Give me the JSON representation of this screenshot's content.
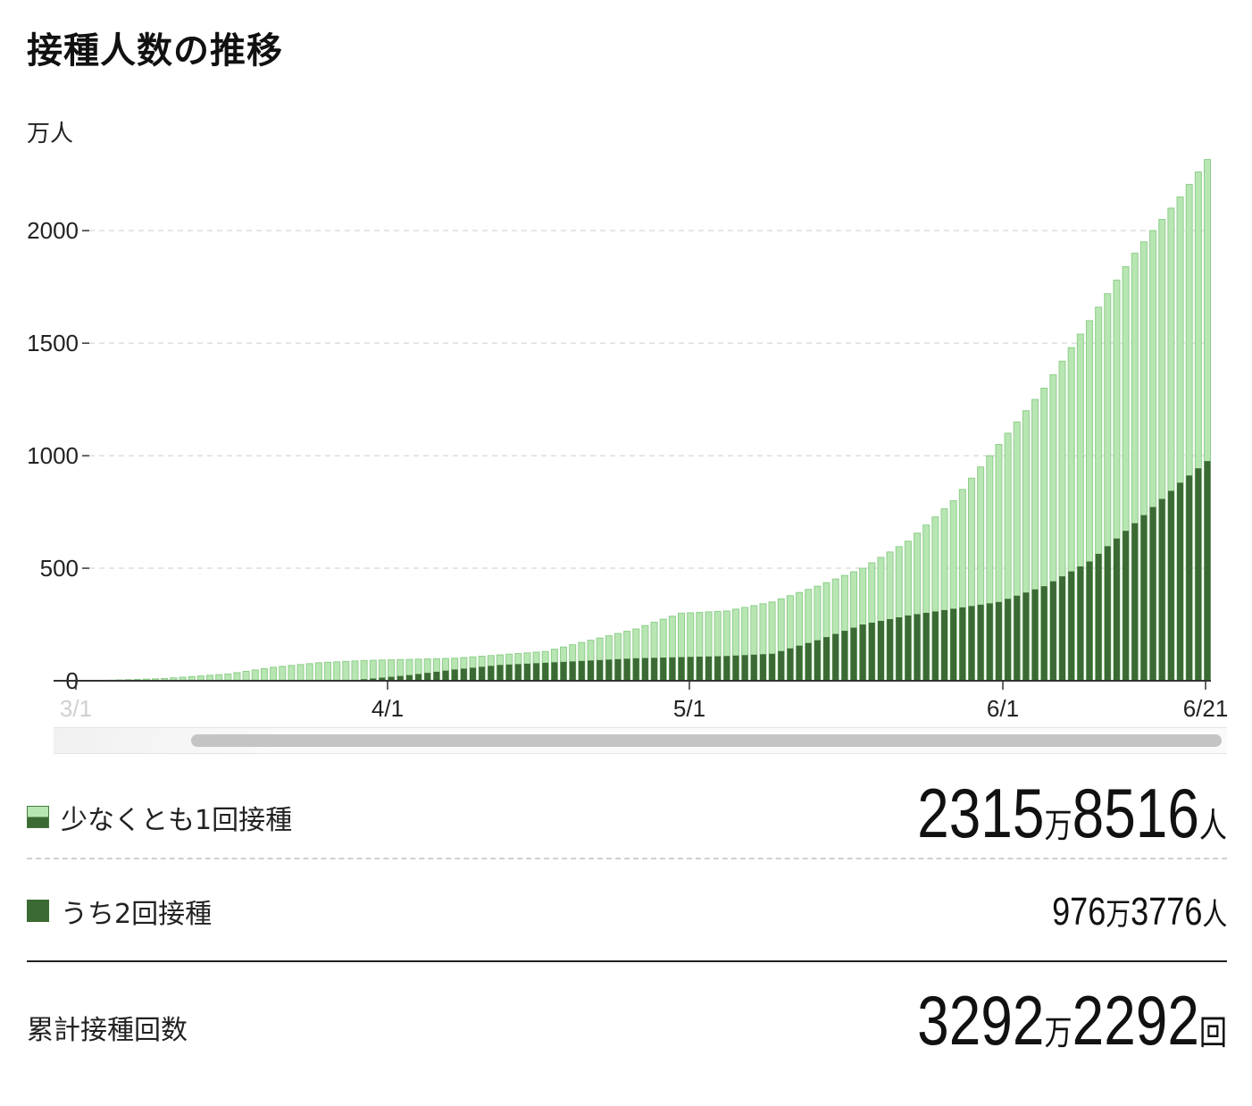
{
  "title": "接種人数の推移",
  "chart_data": {
    "type": "bar",
    "stacked": true,
    "ylabel": "万人",
    "ylim": [
      0,
      2350
    ],
    "yticks": [
      0,
      500,
      1000,
      1500,
      2000
    ],
    "grid": true,
    "xticks": [
      "3/1",
      "4/1",
      "5/1",
      "6/1",
      "6/21"
    ],
    "x_start": "3/1",
    "x_end": "6/21",
    "series": [
      {
        "name": "少なくとも1回接種",
        "color": "#b7e6b3",
        "anchors": [
          [
            0,
            0
          ],
          [
            8,
            10
          ],
          [
            15,
            30
          ],
          [
            20,
            60
          ],
          [
            25,
            80
          ],
          [
            30,
            90
          ],
          [
            35,
            95
          ],
          [
            40,
            100
          ],
          [
            45,
            115
          ],
          [
            50,
            130
          ],
          [
            55,
            180
          ],
          [
            60,
            230
          ],
          [
            62,
            260
          ],
          [
            65,
            300
          ],
          [
            70,
            310
          ],
          [
            75,
            350
          ],
          [
            80,
            420
          ],
          [
            85,
            500
          ],
          [
            90,
            620
          ],
          [
            95,
            800
          ],
          [
            100,
            1050
          ],
          [
            105,
            1300
          ],
          [
            110,
            1600
          ],
          [
            115,
            1900
          ],
          [
            120,
            2150
          ],
          [
            123,
            2316
          ]
        ]
      },
      {
        "name": "うち2回接種",
        "color": "#3c6a34",
        "anchors": [
          [
            0,
            0
          ],
          [
            28,
            0
          ],
          [
            31,
            10
          ],
          [
            35,
            25
          ],
          [
            40,
            50
          ],
          [
            45,
            70
          ],
          [
            50,
            80
          ],
          [
            55,
            90
          ],
          [
            60,
            100
          ],
          [
            65,
            105
          ],
          [
            70,
            110
          ],
          [
            75,
            120
          ],
          [
            80,
            180
          ],
          [
            85,
            250
          ],
          [
            90,
            290
          ],
          [
            95,
            320
          ],
          [
            100,
            350
          ],
          [
            105,
            420
          ],
          [
            110,
            530
          ],
          [
            115,
            700
          ],
          [
            120,
            880
          ],
          [
            123,
            976
          ]
        ]
      }
    ],
    "colors": {
      "first_dose": "#b7e6b3",
      "first_dose_edge": "#8fce8a",
      "second_dose": "#3c6a34",
      "grid": "#dddddd"
    }
  },
  "stats": {
    "first": {
      "label": "少なくとも1回接種",
      "man": "2315",
      "unit_man": "万",
      "rest": "8516",
      "unit": "人"
    },
    "second": {
      "label": "うち2回接種",
      "man": "976",
      "unit_man": "万",
      "rest": "3776",
      "unit": "人"
    },
    "total": {
      "label": "累計接種回数",
      "man": "3292",
      "unit_man": "万",
      "rest": "2292",
      "unit": "回"
    }
  }
}
